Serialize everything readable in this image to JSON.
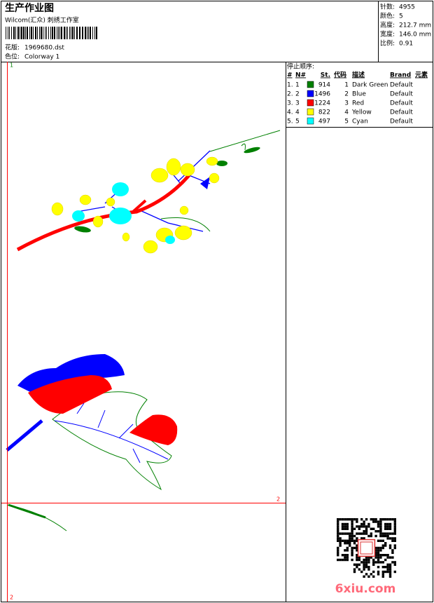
{
  "header": {
    "title": "生产作业图",
    "studio": "Wilcom(汇众) 刺绣工作室",
    "design_label": "花版:",
    "design": "1969680.dst",
    "colorway_label": "色位:",
    "colorway": "Colorway 1"
  },
  "stats": [
    {
      "label": "针数:",
      "value": 4955
    },
    {
      "label": "颜色:",
      "value": 5
    },
    {
      "label": "高度:",
      "value": "212.7 mm"
    },
    {
      "label": "宽度:",
      "value": "146.0 mm"
    },
    {
      "label": "比例:",
      "value": 0.91
    }
  ],
  "stop_sequence": {
    "title": "停止顺序:",
    "columns": [
      "#",
      "N#",
      "St.",
      "代码",
      "描述",
      "Brand",
      "元素"
    ],
    "rows": [
      {
        "index": "1.",
        "n": 1,
        "stitches": 914,
        "code": 1,
        "description": "Dark Green",
        "brand": "Default",
        "color": "#008000"
      },
      {
        "index": "2.",
        "n": 2,
        "stitches": 1496,
        "code": 2,
        "description": "Blue",
        "brand": "Default",
        "color": "#0000ff"
      },
      {
        "index": "3.",
        "n": 3,
        "stitches": 1224,
        "code": 3,
        "description": "Red",
        "brand": "Default",
        "color": "#ff0000"
      },
      {
        "index": "4.",
        "n": 4,
        "stitches": 822,
        "code": 4,
        "description": "Yellow",
        "brand": "Default",
        "color": "#ffff00"
      },
      {
        "index": "5.",
        "n": 5,
        "stitches": 497,
        "code": 5,
        "description": "Cyan",
        "brand": "Default",
        "color": "#00ffff"
      }
    ]
  },
  "markers": [
    "1",
    "2",
    "2"
  ],
  "watermark": "6xiu.com"
}
